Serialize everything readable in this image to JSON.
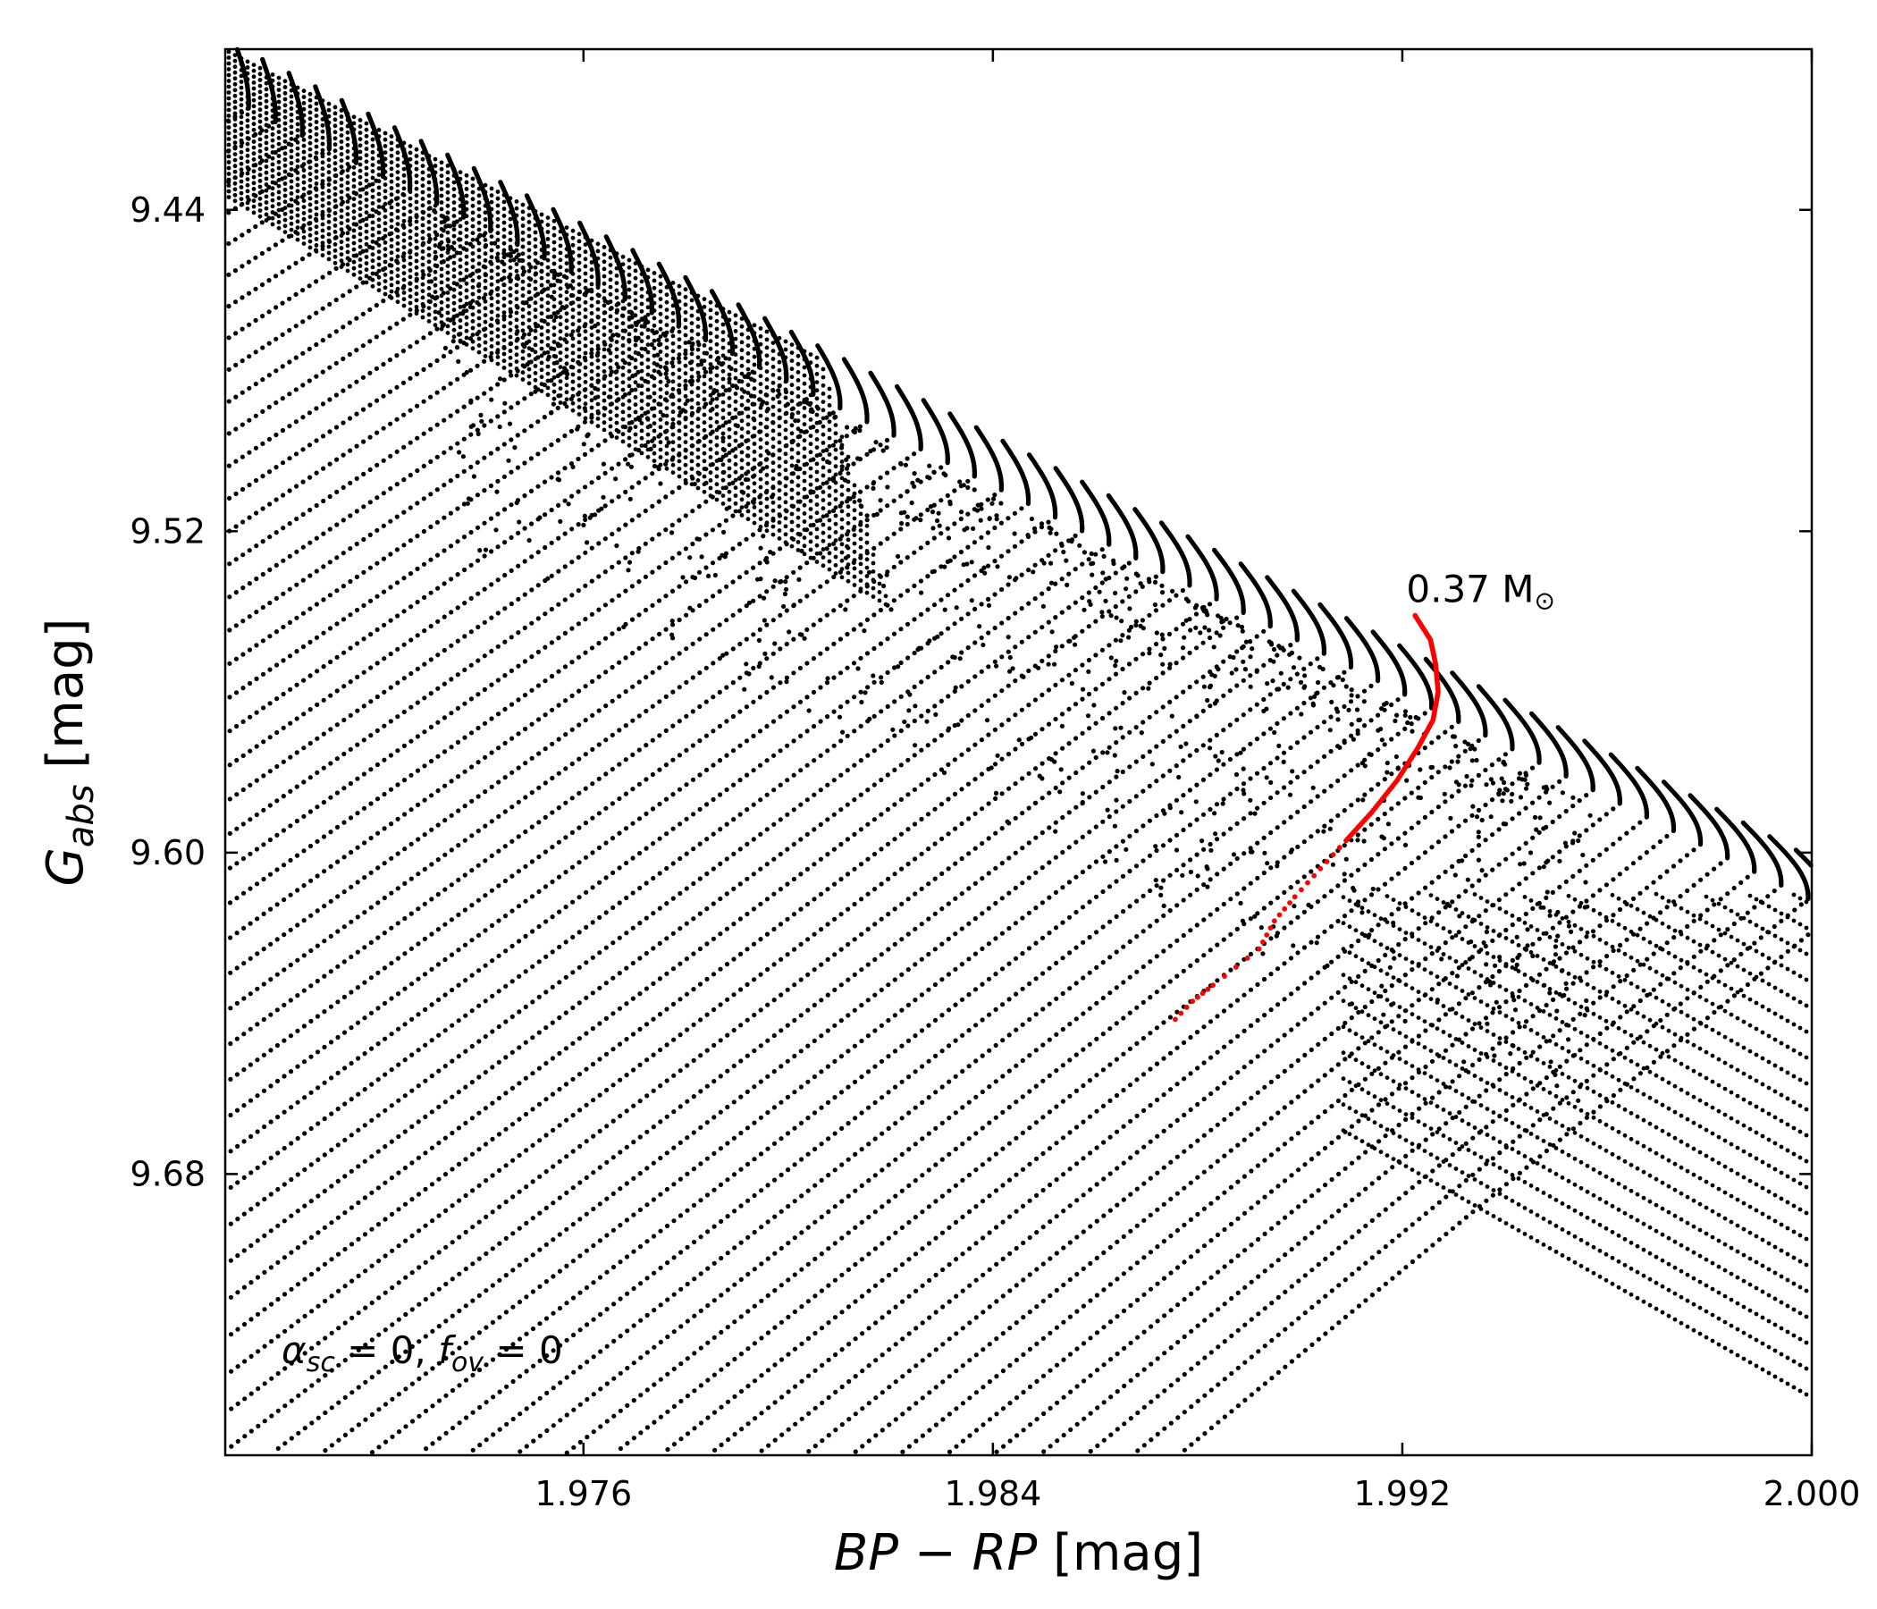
{
  "chart_data": {
    "type": "scatter",
    "title": "",
    "xlabel": {
      "main": "BP − RP",
      "unit": " [mag]"
    },
    "ylabel": {
      "main": "G",
      "sub": "abs",
      "unit": " [mag]"
    },
    "xlim": [
      1.969,
      2.0
    ],
    "ylim": [
      9.72,
      9.4
    ],
    "y_inverted": true,
    "grid": false,
    "x_ticks": [
      1.976,
      1.984,
      1.992,
      2.0
    ],
    "x_tick_labels": [
      "1.976",
      "1.984",
      "1.992",
      "2.000"
    ],
    "y_ticks": [
      9.44,
      9.52,
      9.6,
      9.68
    ],
    "y_tick_labels": [
      "9.44",
      "9.52",
      "9.60",
      "9.68"
    ],
    "colors": {
      "tracks": "#000000",
      "highlight": "#ff0000"
    },
    "annotations": [
      {
        "text": "0.37 M",
        "subscript": "⊙",
        "x": 1.9922,
        "y": 9.541
      },
      {
        "text": "α",
        "sub": "sc",
        "rest": " = 0, ",
        "text2": "f",
        "sub2": "ov",
        "rest2": " = 0",
        "position": "bottom-left"
      }
    ],
    "series": [
      {
        "role": "tracks",
        "description_free": true,
        "color": "#000000",
        "track_count": 60,
        "track_start_x_range": [
          1.969,
          2.0
        ],
        "track_start_y_range": [
          9.401,
          9.577
        ],
        "track_end": {
          "x": [
            1.969,
            2.0
          ],
          "y_at_right": [
            9.6,
            9.71
          ]
        },
        "values": [
          {
            "x": 1.97,
            "y": 9.401
          },
          {
            "x": 1.974,
            "y": 9.422
          },
          {
            "x": 1.978,
            "y": 9.443
          },
          {
            "x": 1.98,
            "y": 9.453
          },
          {
            "x": 1.981,
            "y": 9.464
          },
          {
            "x": 1.982,
            "y": 9.47
          },
          {
            "x": 1.983,
            "y": 9.48
          },
          {
            "x": 1.987,
            "y": 9.5
          },
          {
            "x": 1.992,
            "y": 9.526
          },
          {
            "x": 1.996,
            "y": 9.547
          },
          {
            "x": 2.0,
            "y": 9.599
          }
        ]
      },
      {
        "role": "highlight",
        "name": "0.37 M⊙",
        "color": "#ff0000",
        "values": [
          {
            "x": 1.99225,
            "y": 9.541
          },
          {
            "x": 1.99255,
            "y": 9.547
          },
          {
            "x": 1.99265,
            "y": 9.553
          },
          {
            "x": 1.9927,
            "y": 9.56
          },
          {
            "x": 1.9926,
            "y": 9.567
          },
          {
            "x": 1.9923,
            "y": 9.574
          },
          {
            "x": 1.9919,
            "y": 9.582
          },
          {
            "x": 1.9914,
            "y": 9.59
          },
          {
            "x": 1.9909,
            "y": 9.597
          },
          {
            "x": 1.9904,
            "y": 9.604
          },
          {
            "x": 1.9899,
            "y": 9.611
          },
          {
            "x": 1.9895,
            "y": 9.617
          },
          {
            "x": 1.9892,
            "y": 9.624
          },
          {
            "x": 1.9883,
            "y": 9.633
          },
          {
            "x": 1.9879,
            "y": 9.637
          },
          {
            "x": 1.98745,
            "y": 9.643
          }
        ]
      }
    ]
  }
}
